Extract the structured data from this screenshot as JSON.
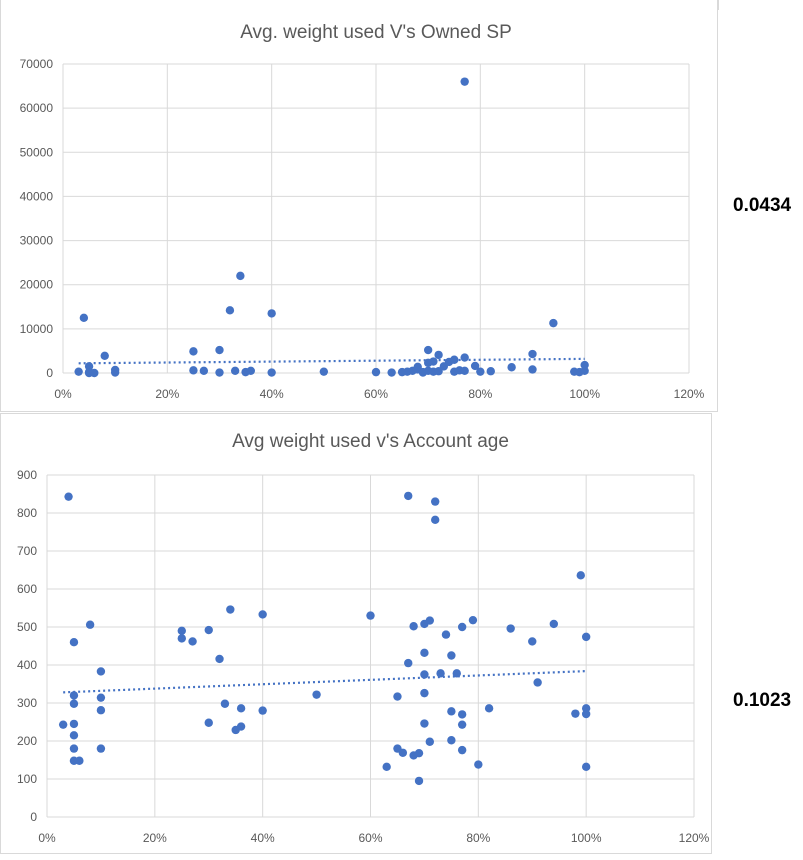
{
  "chart_data": [
    {
      "type": "scatter",
      "title": "Avg. weight used V's Owned SP",
      "xlabel": "",
      "ylabel": "",
      "xlim": [
        0,
        1.2
      ],
      "ylim": [
        0,
        70000
      ],
      "x_ticks": [
        "0%",
        "20%",
        "40%",
        "60%",
        "80%",
        "100%",
        "120%"
      ],
      "y_ticks": [
        "0",
        "10000",
        "20000",
        "30000",
        "40000",
        "50000",
        "60000",
        "70000"
      ],
      "grid": true,
      "series_color": "#4472c4",
      "trendline": {
        "type": "linear",
        "style": "dotted",
        "from": [
          0.03,
          2200
        ],
        "to": [
          1.0,
          3200
        ]
      },
      "points": [
        [
          0.03,
          300
        ],
        [
          0.04,
          12500
        ],
        [
          0.05,
          1500
        ],
        [
          0.05,
          200
        ],
        [
          0.05,
          0
        ],
        [
          0.06,
          0
        ],
        [
          0.08,
          3900
        ],
        [
          0.1,
          100
        ],
        [
          0.1,
          700
        ],
        [
          0.25,
          4900
        ],
        [
          0.25,
          600
        ],
        [
          0.27,
          500
        ],
        [
          0.3,
          5200
        ],
        [
          0.3,
          100
        ],
        [
          0.32,
          14200
        ],
        [
          0.33,
          500
        ],
        [
          0.34,
          22000
        ],
        [
          0.35,
          200
        ],
        [
          0.36,
          500
        ],
        [
          0.4,
          13500
        ],
        [
          0.4,
          100
        ],
        [
          0.5,
          300
        ],
        [
          0.6,
          200
        ],
        [
          0.63,
          100
        ],
        [
          0.65,
          200
        ],
        [
          0.66,
          300
        ],
        [
          0.67,
          500
        ],
        [
          0.68,
          1400
        ],
        [
          0.68,
          800
        ],
        [
          0.69,
          200
        ],
        [
          0.69,
          100
        ],
        [
          0.7,
          5200
        ],
        [
          0.7,
          500
        ],
        [
          0.7,
          2300
        ],
        [
          0.71,
          300
        ],
        [
          0.71,
          2600
        ],
        [
          0.72,
          4100
        ],
        [
          0.72,
          400
        ],
        [
          0.73,
          1500
        ],
        [
          0.74,
          2500
        ],
        [
          0.75,
          3000
        ],
        [
          0.75,
          300
        ],
        [
          0.76,
          600
        ],
        [
          0.77,
          66000
        ],
        [
          0.77,
          3500
        ],
        [
          0.77,
          500
        ],
        [
          0.79,
          1600
        ],
        [
          0.8,
          300
        ],
        [
          0.82,
          400
        ],
        [
          0.86,
          1300
        ],
        [
          0.9,
          4300
        ],
        [
          0.9,
          800
        ],
        [
          0.94,
          11300
        ],
        [
          0.98,
          300
        ],
        [
          0.99,
          200
        ],
        [
          1.0,
          1800
        ],
        [
          1.0,
          500
        ]
      ]
    },
    {
      "type": "scatter",
      "title": "Avg weight used v's Account age",
      "xlabel": "",
      "ylabel": "",
      "xlim": [
        0,
        1.2
      ],
      "ylim": [
        0,
        900
      ],
      "x_ticks": [
        "0%",
        "20%",
        "40%",
        "60%",
        "80%",
        "100%",
        "120%"
      ],
      "y_ticks": [
        "0",
        "100",
        "200",
        "300",
        "400",
        "500",
        "600",
        "700",
        "800",
        "900"
      ],
      "grid": true,
      "series_color": "#4472c4",
      "trendline": {
        "type": "linear",
        "style": "dotted",
        "from": [
          0.03,
          328
        ],
        "to": [
          1.0,
          384
        ]
      },
      "points": [
        [
          0.03,
          243
        ],
        [
          0.04,
          843
        ],
        [
          0.05,
          460
        ],
        [
          0.05,
          320
        ],
        [
          0.05,
          298
        ],
        [
          0.05,
          245
        ],
        [
          0.05,
          215
        ],
        [
          0.05,
          180
        ],
        [
          0.05,
          148
        ],
        [
          0.06,
          148
        ],
        [
          0.08,
          506
        ],
        [
          0.1,
          383
        ],
        [
          0.1,
          314
        ],
        [
          0.1,
          281
        ],
        [
          0.1,
          180
        ],
        [
          0.25,
          490
        ],
        [
          0.25,
          470
        ],
        [
          0.27,
          462
        ],
        [
          0.3,
          492
        ],
        [
          0.3,
          248
        ],
        [
          0.32,
          416
        ],
        [
          0.33,
          298
        ],
        [
          0.34,
          546
        ],
        [
          0.35,
          229
        ],
        [
          0.36,
          286
        ],
        [
          0.36,
          238
        ],
        [
          0.4,
          533
        ],
        [
          0.4,
          280
        ],
        [
          0.5,
          322
        ],
        [
          0.6,
          530
        ],
        [
          0.63,
          132
        ],
        [
          0.65,
          317
        ],
        [
          0.65,
          180
        ],
        [
          0.66,
          169
        ],
        [
          0.67,
          845
        ],
        [
          0.67,
          405
        ],
        [
          0.68,
          502
        ],
        [
          0.68,
          162
        ],
        [
          0.69,
          168
        ],
        [
          0.69,
          95
        ],
        [
          0.7,
          508
        ],
        [
          0.7,
          432
        ],
        [
          0.7,
          375
        ],
        [
          0.7,
          326
        ],
        [
          0.7,
          246
        ],
        [
          0.71,
          517
        ],
        [
          0.71,
          198
        ],
        [
          0.72,
          830
        ],
        [
          0.72,
          782
        ],
        [
          0.73,
          378
        ],
        [
          0.74,
          480
        ],
        [
          0.75,
          425
        ],
        [
          0.75,
          278
        ],
        [
          0.75,
          202
        ],
        [
          0.76,
          378
        ],
        [
          0.77,
          500
        ],
        [
          0.77,
          270
        ],
        [
          0.77,
          243
        ],
        [
          0.77,
          176
        ],
        [
          0.79,
          518
        ],
        [
          0.8,
          138
        ],
        [
          0.82,
          286
        ],
        [
          0.86,
          496
        ],
        [
          0.9,
          462
        ],
        [
          0.91,
          354
        ],
        [
          0.94,
          508
        ],
        [
          0.98,
          272
        ],
        [
          0.99,
          636
        ],
        [
          1.0,
          474
        ],
        [
          1.0,
          286
        ],
        [
          1.0,
          271
        ],
        [
          1.0,
          132
        ]
      ]
    }
  ],
  "correlations": {
    "top": "0.0434",
    "bottom": "0.1023"
  }
}
